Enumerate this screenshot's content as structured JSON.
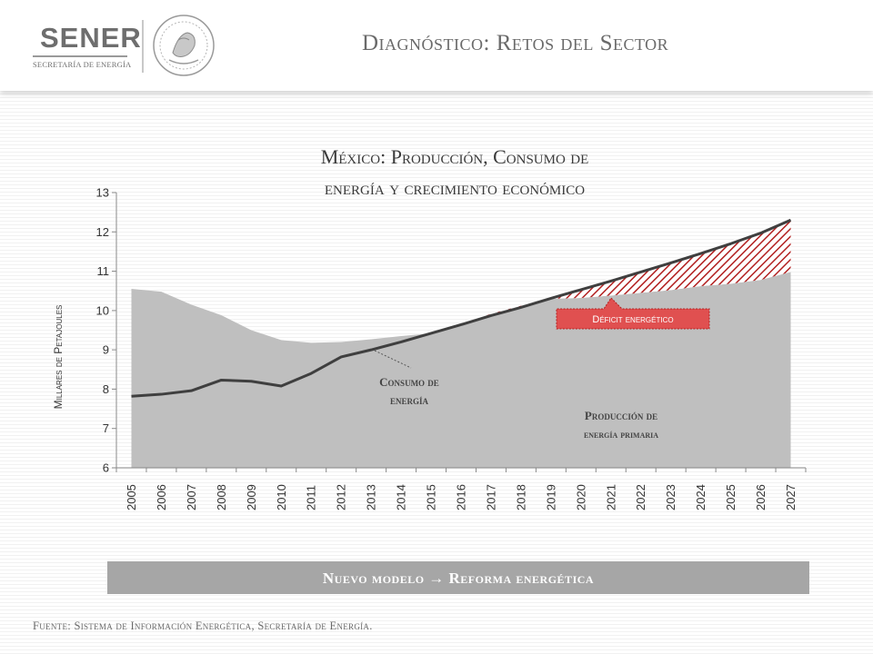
{
  "header": {
    "logo_name": "SENER",
    "logo_subtitle": "SECRETARÍA DE ENERGÍA",
    "title": "Diagnóstico: Retos del Sector"
  },
  "colors": {
    "production_fill": "#bfbfbf",
    "consumption_line": "#3f3f3f",
    "deficit_hatch": "#b22020",
    "deficit_label_bg": "#e05050",
    "banner_bg": "#a6a6a6",
    "logo_gray": "#6e6e6e"
  },
  "icons": {
    "seal": "national-seal-icon"
  },
  "chart_data": {
    "type": "area",
    "title_line1": "México: Producción, Consumo de",
    "title_line2": "energía y crecimiento económico",
    "ylabel": "Millares de Petajoules",
    "xlabel": "",
    "ylim": [
      6,
      13
    ],
    "yticks": [
      6,
      7,
      8,
      9,
      10,
      11,
      12,
      13
    ],
    "x": [
      "2005",
      "2006",
      "2007",
      "2008",
      "2009",
      "2010",
      "2011",
      "2012",
      "2013",
      "2014",
      "2015",
      "2016",
      "2017",
      "2018",
      "2019",
      "2020",
      "2021",
      "2022",
      "2023",
      "2024",
      "2025",
      "2026",
      "2027"
    ],
    "series": [
      {
        "name": "Producción de energía primaria",
        "kind": "area",
        "values": [
          10.55,
          10.48,
          10.15,
          9.88,
          9.5,
          9.25,
          9.18,
          9.2,
          9.27,
          9.35,
          9.42,
          9.62,
          9.92,
          10.12,
          10.3,
          10.32,
          10.38,
          10.45,
          10.52,
          10.62,
          10.68,
          10.78,
          10.98
        ]
      },
      {
        "name": "Consumo de energía",
        "kind": "line",
        "values": [
          7.82,
          7.87,
          7.96,
          8.23,
          8.2,
          8.08,
          8.4,
          8.82,
          9.0,
          9.2,
          9.42,
          9.64,
          9.87,
          10.08,
          10.31,
          10.53,
          10.75,
          10.98,
          11.21,
          11.45,
          11.7,
          11.97,
          12.3
        ]
      }
    ],
    "annotations": {
      "consumption_label": "Consumo de energía",
      "production_label": "Producción de energía primaria",
      "deficit_label": "Déficit energético"
    },
    "grid": false,
    "legend": "none"
  },
  "banner": {
    "text": "Nuevo modelo  →  Reforma energética"
  },
  "footer": {
    "source": "Fuente: Sistema de Información Energética, Secretaría de Energía."
  }
}
